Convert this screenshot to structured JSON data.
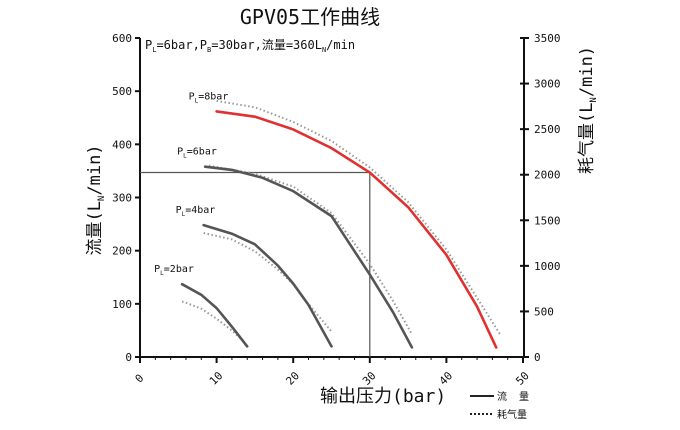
{
  "chart_data": {
    "type": "line",
    "title": "GPV05工作曲线",
    "annotation": "PL=6bar,PB=30bar,流量=360LN/min",
    "annotation_parts": [
      "P",
      "L",
      "=6bar,P",
      "B",
      "=30bar,流量=360L",
      "N",
      "/min"
    ],
    "xlabel": "输出压力(bar)",
    "ylabel": "流量(LN/min)",
    "ylabel_parts": [
      "流量(L",
      "N",
      "/min)"
    ],
    "y2label": "耗气量(LN/min)",
    "y2label_parts": [
      "耗气量(L",
      "N",
      "/min)"
    ],
    "xlim": [
      0,
      50
    ],
    "ylim": [
      0,
      600
    ],
    "y2lim": [
      0,
      3500
    ],
    "xticks": [
      "0",
      "10",
      "20",
      "30",
      "40",
      "50"
    ],
    "yticks": [
      "0",
      "100",
      "200",
      "300",
      "400",
      "500",
      "600"
    ],
    "y2ticks": [
      "0",
      "500",
      "1000",
      "1500",
      "2000",
      "2500",
      "3000",
      "3500"
    ],
    "reference_point": {
      "x": 30,
      "y": 347
    },
    "legend": {
      "position": "bottom-right",
      "entries": [
        {
          "label": "流  量",
          "style": "solid"
        },
        {
          "label": "耗气量",
          "style": "dotted"
        }
      ]
    },
    "series": [
      {
        "name": "PL=8bar",
        "label_parts": [
          "P",
          "L",
          "=8bar"
        ],
        "color": "#e03030",
        "flow": [
          [
            10,
            462
          ],
          [
            15,
            452
          ],
          [
            20,
            428
          ],
          [
            25,
            393
          ],
          [
            30,
            347
          ],
          [
            35,
            282
          ],
          [
            40,
            192
          ],
          [
            44,
            95
          ],
          [
            46.5,
            18
          ]
        ],
        "consumption": [
          [
            10,
            2810
          ],
          [
            15,
            2740
          ],
          [
            20,
            2580
          ],
          [
            25,
            2370
          ],
          [
            30,
            2080
          ],
          [
            35,
            1700
          ],
          [
            40,
            1180
          ],
          [
            44,
            650
          ],
          [
            47,
            250
          ]
        ]
      },
      {
        "name": "PL=6bar",
        "label_parts": [
          "P",
          "L",
          "=6bar"
        ],
        "color": "#555555",
        "flow": [
          [
            8.5,
            358
          ],
          [
            12,
            352
          ],
          [
            16,
            337
          ],
          [
            20,
            312
          ],
          [
            25,
            265
          ],
          [
            30,
            155
          ],
          [
            33,
            85
          ],
          [
            35.5,
            18
          ]
        ],
        "consumption": [
          [
            9,
            2100
          ],
          [
            15,
            2010
          ],
          [
            20,
            1870
          ],
          [
            25,
            1580
          ],
          [
            30,
            1020
          ],
          [
            33,
            620
          ],
          [
            35.5,
            250
          ]
        ]
      },
      {
        "name": "PL=4bar",
        "label_parts": [
          "P",
          "L",
          "=4bar"
        ],
        "color": "#555555",
        "flow": [
          [
            8.3,
            248
          ],
          [
            12,
            232
          ],
          [
            15,
            212
          ],
          [
            18,
            172
          ],
          [
            20,
            138
          ],
          [
            22,
            98
          ],
          [
            25,
            20
          ]
        ],
        "consumption": [
          [
            8.3,
            1360
          ],
          [
            12,
            1290
          ],
          [
            15,
            1160
          ],
          [
            18,
            960
          ],
          [
            20,
            800
          ],
          [
            22,
            580
          ],
          [
            25,
            280
          ]
        ]
      },
      {
        "name": "PL=2bar",
        "label_parts": [
          "P",
          "L",
          "=2bar"
        ],
        "color": "#555555",
        "flow": [
          [
            5.5,
            137
          ],
          [
            8,
            117
          ],
          [
            10,
            92
          ],
          [
            12,
            57
          ],
          [
            14,
            20
          ]
        ],
        "consumption": [
          [
            5.5,
            610
          ],
          [
            8,
            530
          ],
          [
            10,
            420
          ],
          [
            12,
            290
          ],
          [
            13.5,
            175
          ]
        ]
      }
    ]
  }
}
